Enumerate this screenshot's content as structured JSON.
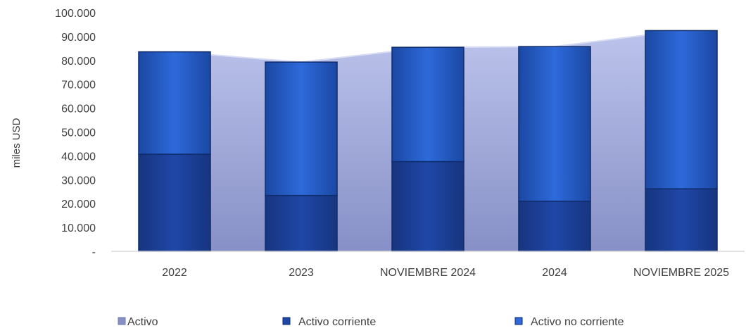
{
  "chart_data": {
    "type": "bar",
    "subtype": "stacked-bar-with-area",
    "categories": [
      "2022",
      "2023",
      "NOVIEMBRE 2024",
      "2024",
      "NOVIEMBRE 2025"
    ],
    "series": [
      {
        "name": "Activo",
        "type": "area",
        "values": [
          83600,
          79300,
          85500,
          85800,
          92500
        ]
      },
      {
        "name": "Activo corriente",
        "type": "bar",
        "values": [
          40700,
          23400,
          37600,
          21000,
          26200
        ]
      },
      {
        "name": "Activo no corriente",
        "type": "bar",
        "values": [
          42900,
          55900,
          47900,
          64800,
          66300
        ]
      }
    ],
    "ylabel": "miles USD",
    "ylim": [
      0,
      100000
    ],
    "yticks": [
      0,
      10000,
      20000,
      30000,
      40000,
      50000,
      60000,
      70000,
      80000,
      90000,
      100000
    ],
    "ytick_labels": [
      "-",
      "10.000",
      "20.000",
      "30.000",
      "40.000",
      "50.000",
      "60.000",
      "70.000",
      "80.000",
      "90.000",
      "100.000"
    ],
    "grid": false,
    "legend_position": "bottom",
    "colors": {
      "area_fill_top": "#BCC4EC",
      "area_fill_bottom": "#8790C6",
      "area_line": "#D9DDF4",
      "bar_current": "#1F47A8",
      "bar_current_dark": "#17357F",
      "bar_noncurrent": "#2E6ADB",
      "bar_noncurrent_dark": "#1B48A3",
      "bar_outline": "#0F2C6B",
      "baseline": "#D9D9D9",
      "text": "#404040"
    }
  }
}
